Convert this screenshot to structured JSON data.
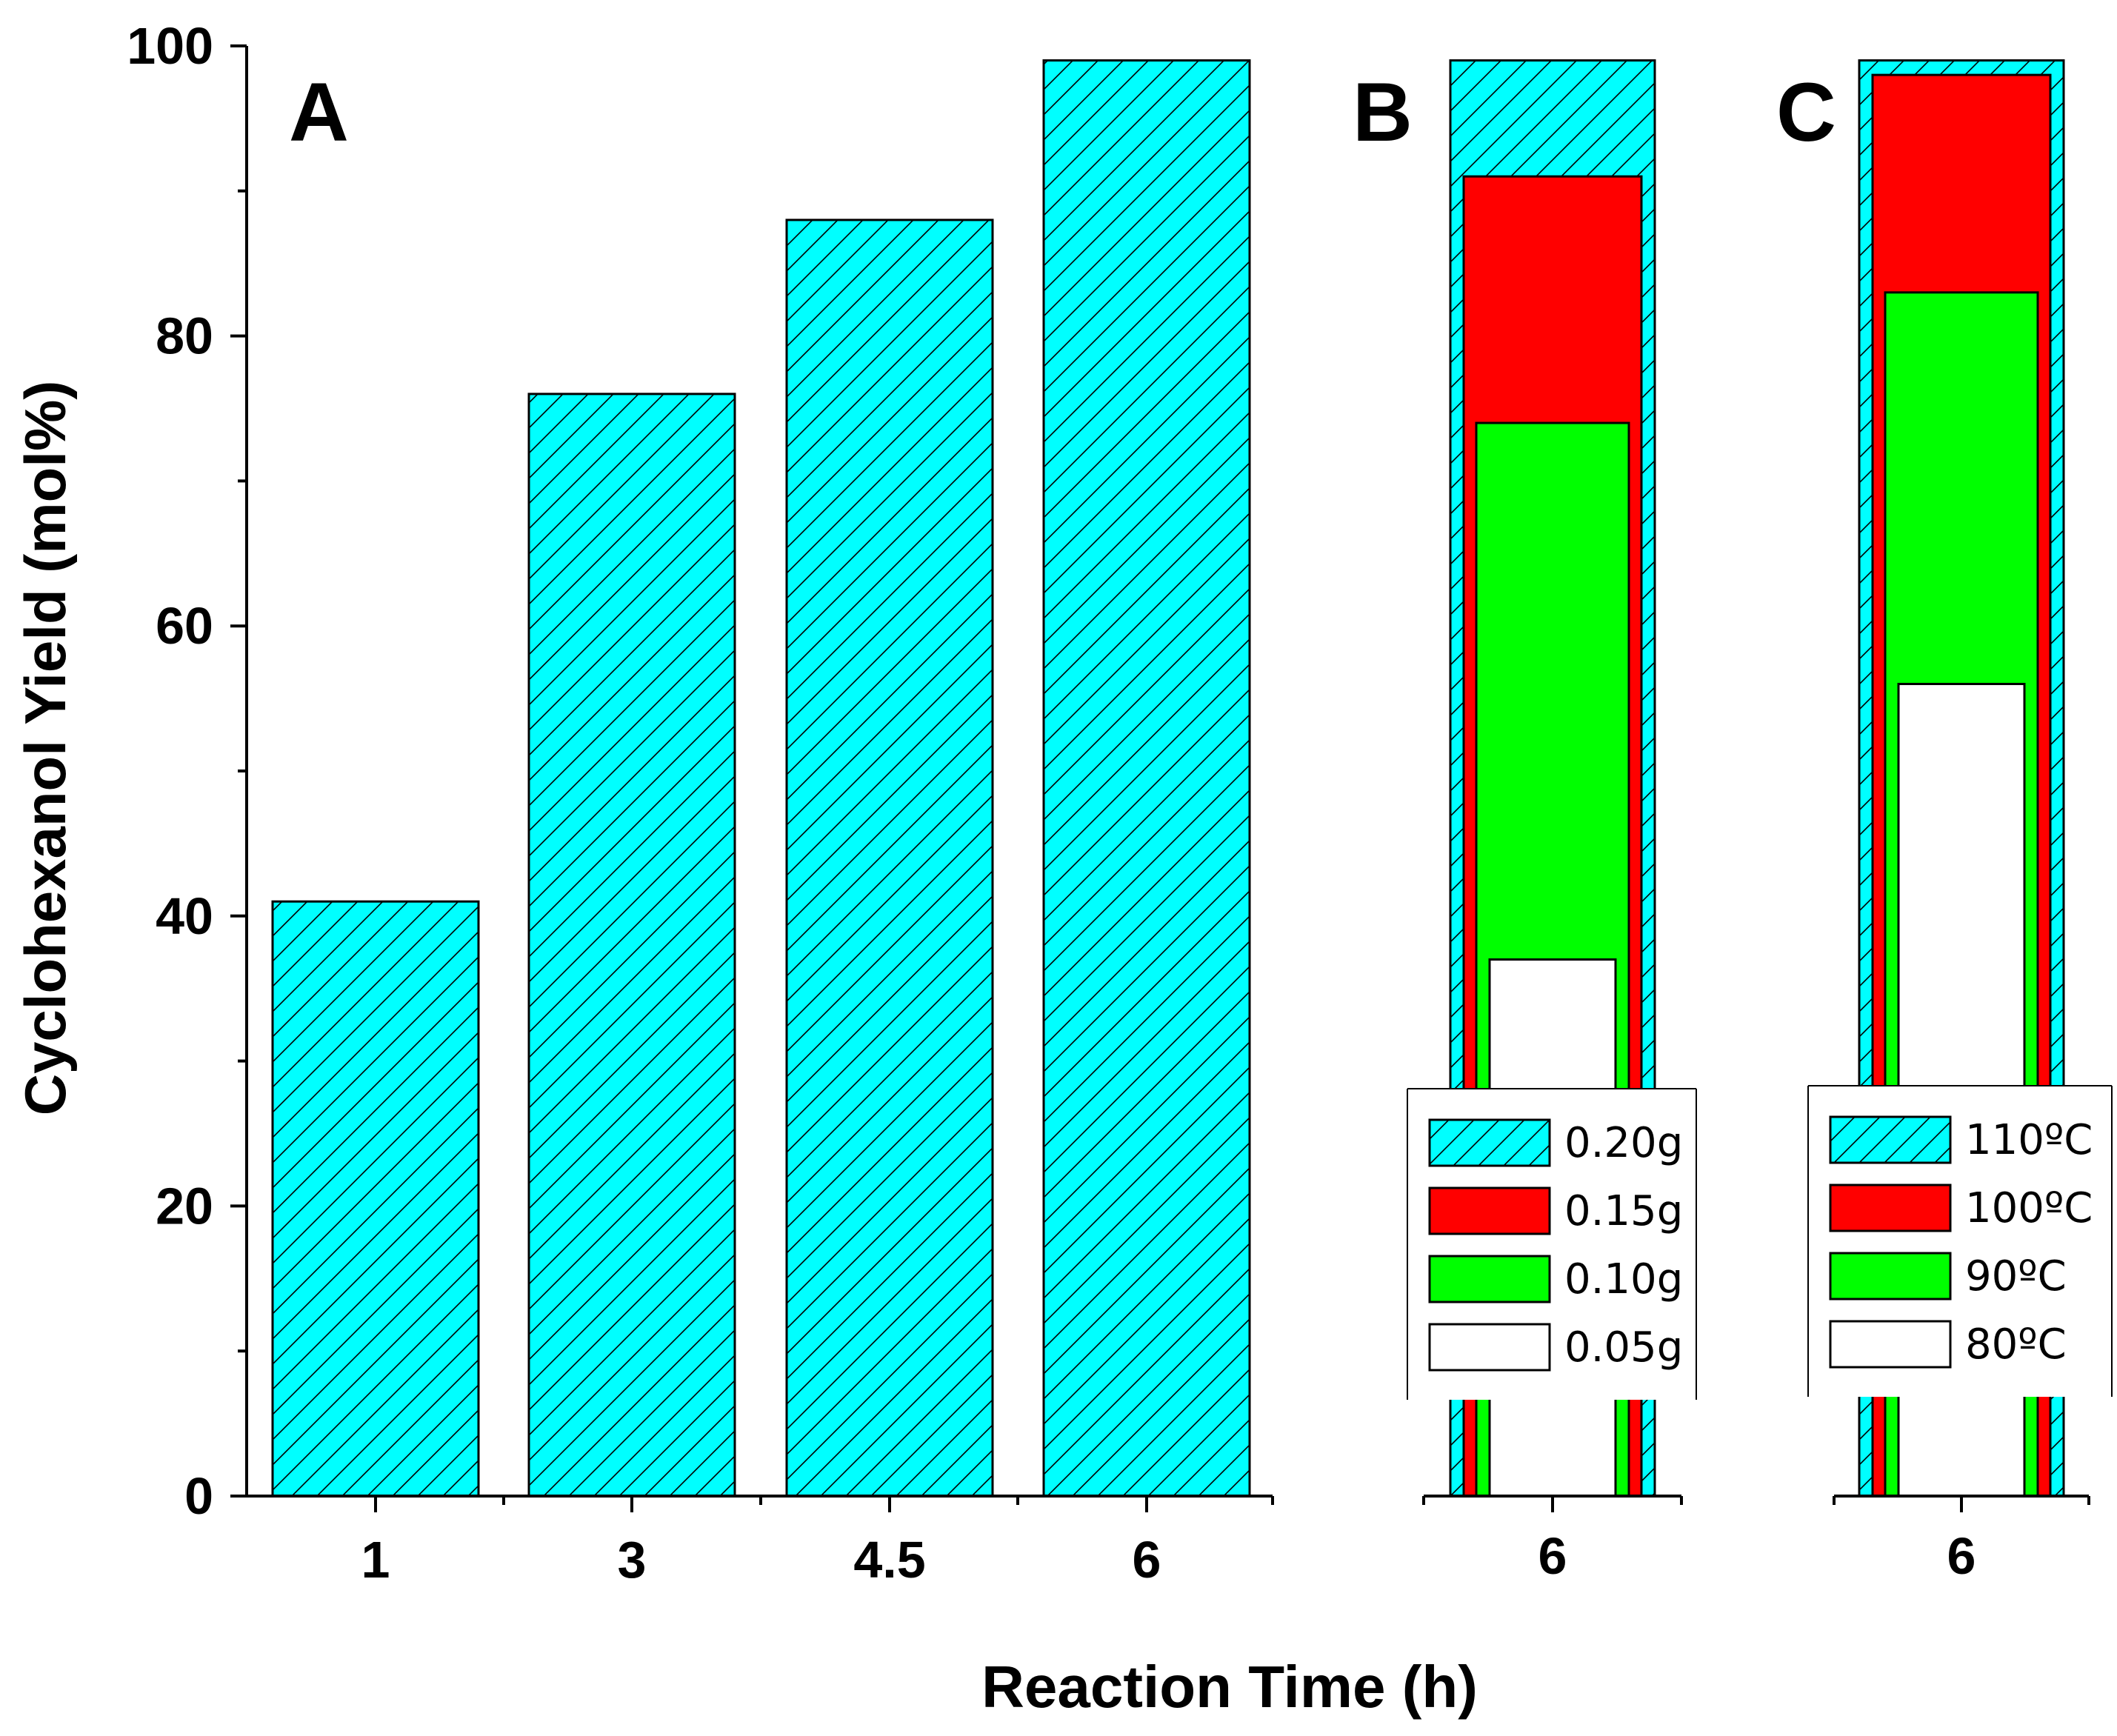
{
  "chart_data": [
    {
      "panel": "A",
      "type": "bar",
      "categories": [
        "1",
        "3",
        "4.5",
        "6"
      ],
      "values": [
        41,
        76,
        88,
        99
      ],
      "ylabel": "Cyclohexanol Yield (mol%)",
      "ylim": [
        0,
        100
      ],
      "yticks": [
        "0",
        "20",
        "40",
        "60",
        "80",
        "100"
      ],
      "fill": "#00ffff",
      "pattern": "diagonal hatch"
    },
    {
      "panel": "B",
      "type": "bar",
      "categories": [
        "6"
      ],
      "series": [
        {
          "name": "0.20g",
          "values": [
            99
          ],
          "color": "#00ffff",
          "pattern": "diagonal hatch"
        },
        {
          "name": "0.15g",
          "values": [
            91
          ],
          "color": "#ff0000"
        },
        {
          "name": "0.10g",
          "values": [
            74
          ],
          "color": "#00ff00"
        },
        {
          "name": "0.05g",
          "values": [
            37
          ],
          "color": "#ffffff"
        }
      ],
      "ylim": [
        0,
        100
      ],
      "legend": "bottom"
    },
    {
      "panel": "C",
      "type": "bar",
      "categories": [
        "6"
      ],
      "series": [
        {
          "name": "110ºC",
          "values": [
            99
          ],
          "color": "#00ffff",
          "pattern": "diagonal hatch"
        },
        {
          "name": "100ºC",
          "values": [
            98
          ],
          "color": "#ff0000"
        },
        {
          "name": "90ºC",
          "values": [
            83
          ],
          "color": "#00ff00"
        },
        {
          "name": "80ºC",
          "values": [
            56
          ],
          "color": "#ffffff"
        }
      ],
      "ylim": [
        0,
        100
      ],
      "legend": "bottom"
    }
  ],
  "xlabel": "Reaction Time (h)"
}
